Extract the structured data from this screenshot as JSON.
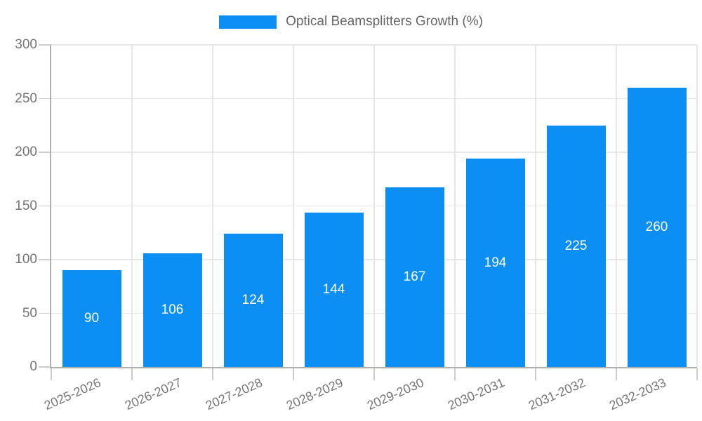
{
  "chart_data": {
    "type": "bar",
    "title": "Optical Beamsplitters Growth (%)",
    "categories": [
      "2025-2026",
      "2026-2027",
      "2027-2028",
      "2028-2029",
      "2029-2030",
      "2030-2031",
      "2031-2032",
      "2032-2033"
    ],
    "values": [
      90,
      106,
      124,
      144,
      167,
      194,
      225,
      260
    ],
    "value_labels": [
      "90",
      "106",
      "124",
      "144",
      "167",
      "194",
      "225",
      "260"
    ],
    "xlabel": "",
    "ylabel": "",
    "ylim": [
      0,
      300
    ],
    "yticks": [
      0,
      50,
      100,
      150,
      200,
      250,
      300
    ],
    "grid": true,
    "legend_position": "top"
  },
  "colors": {
    "bar": "#0b8ff4",
    "value_label": "#ffffff",
    "grid": "#e7e7e7",
    "axis": "#b0b0b0",
    "tick": "#cccccc",
    "tick_text": "#757575",
    "legend_text": "#666666",
    "background": "#ffffff"
  }
}
